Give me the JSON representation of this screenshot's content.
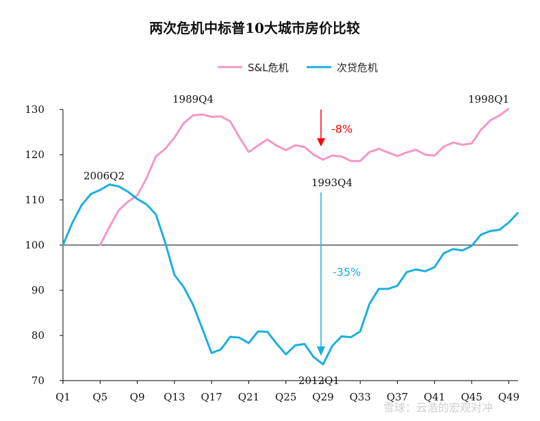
{
  "chart_data": {
    "type": "line",
    "title": "两次危机中标普10大城市房价比较",
    "ylim": [
      70,
      130
    ],
    "yticks": [
      70,
      80,
      90,
      100,
      110,
      120,
      130
    ],
    "xticks": [
      "Q1",
      "Q5",
      "Q9",
      "Q13",
      "Q17",
      "Q21",
      "Q25",
      "Q29",
      "Q33",
      "Q37",
      "Q41",
      "Q45",
      "Q49"
    ],
    "xtick_positions": [
      1,
      5,
      9,
      13,
      17,
      21,
      25,
      29,
      33,
      37,
      41,
      45,
      49
    ],
    "xlim": [
      1,
      50
    ],
    "legend_position": "top-center",
    "baseline": 100,
    "series": [
      {
        "name": "S&L危机",
        "color": "#f597c4",
        "x": [
          5,
          6,
          7,
          8,
          9,
          10,
          11,
          12,
          13,
          14,
          15,
          16,
          17,
          18,
          19,
          20,
          21,
          22,
          23,
          24,
          25,
          26,
          27,
          28,
          29,
          30,
          31,
          32,
          33,
          34,
          35,
          36,
          37,
          38,
          39,
          40,
          41,
          42,
          43,
          44,
          45,
          46,
          47,
          48,
          49
        ],
        "values": [
          100,
          104,
          107.7,
          109.6,
          111,
          114.8,
          119.6,
          121.3,
          123.8,
          127,
          128.7,
          128.9,
          128.4,
          128.5,
          127.4,
          123.8,
          120.6,
          122,
          123.4,
          122,
          121,
          122.1,
          121.7,
          120,
          118.9,
          119.8,
          119.6,
          118.6,
          118.6,
          120.6,
          121.3,
          120.5,
          119.7,
          120.5,
          121.1,
          120,
          119.8,
          121.8,
          122.7,
          122.2,
          122.5,
          125.5,
          127.6,
          128.7,
          130.2
        ]
      },
      {
        "name": "次贷危机",
        "color": "#1aafe0",
        "x": [
          1,
          2,
          3,
          4,
          5,
          6,
          7,
          8,
          9,
          10,
          11,
          12,
          13,
          14,
          15,
          16,
          17,
          18,
          19,
          20,
          21,
          22,
          23,
          24,
          25,
          26,
          27,
          28,
          29,
          30,
          31,
          32,
          33,
          34,
          35,
          36,
          37,
          38,
          39,
          40,
          41,
          42,
          43,
          44,
          45,
          46,
          47,
          48,
          49,
          50
        ],
        "values": [
          100,
          104.9,
          108.8,
          111.3,
          112.2,
          113.4,
          113,
          111.8,
          110.2,
          109,
          106.8,
          100.6,
          93.4,
          90.7,
          86.8,
          81.5,
          76.1,
          76.9,
          79.7,
          79.5,
          78.3,
          80.9,
          80.8,
          78.2,
          75.8,
          77.8,
          78.1,
          75.2,
          73.6,
          77.7,
          79.8,
          79.6,
          80.9,
          87,
          90.3,
          90.3,
          91,
          94,
          94.6,
          94.2,
          95.1,
          98.2,
          99.1,
          98.8,
          99.8,
          102.3,
          103.1,
          103.4,
          105,
          107.2
        ]
      }
    ],
    "annotations": {
      "sl_peak": "1989Q4",
      "sl_trough": "1993Q4",
      "sl_recent": "1998Q1",
      "subprime_peak": "2006Q2",
      "subprime_trough": "2012Q1",
      "sl_drop": "-8%",
      "subprime_drop": "-35%"
    },
    "annotation_colors": {
      "sl_drop": "#ff0000",
      "subprime_drop": "#1aafe0"
    }
  },
  "watermark": "雪球：云浩的宏观对冲"
}
